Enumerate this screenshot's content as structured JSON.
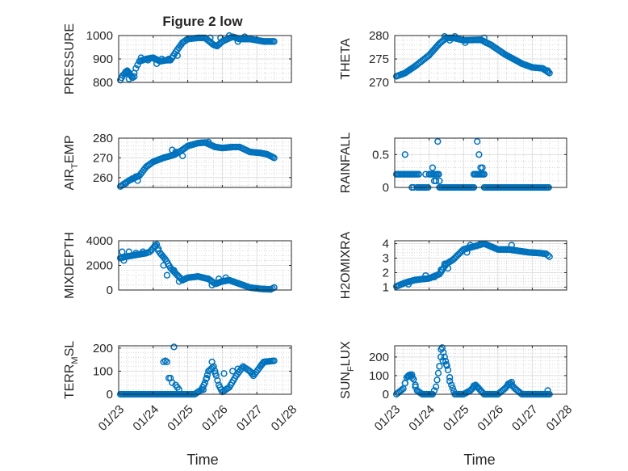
{
  "figure": {
    "title": "Figure 2 low",
    "xlabel": "Time"
  },
  "colors": {
    "marker": "#0072BD",
    "axes": "#262626",
    "grid": "#dfdfdf",
    "minor_grid": "#c8c8c8"
  },
  "chart_data": [
    {
      "type": "scatter",
      "id": "pressure",
      "title": "Figure 2 low",
      "ylabel": "PRESSURE",
      "ylabel_sub": "",
      "xlim": [
        "01/23",
        "01/28"
      ],
      "ylim": [
        800,
        1000
      ],
      "yticks": [
        800,
        900,
        1000
      ],
      "xticks": [
        "01/23",
        "01/24",
        "01/25",
        "01/26",
        "01/27",
        "01/28"
      ],
      "xticklabels_shown": false,
      "marker": "circle",
      "grid": "on (major + minor)",
      "keypoints": [
        [
          0.05,
          810
        ],
        [
          0.12,
          830
        ],
        [
          0.2,
          840
        ],
        [
          0.25,
          850
        ],
        [
          0.3,
          840
        ],
        [
          0.35,
          830
        ],
        [
          0.4,
          820
        ],
        [
          0.5,
          860
        ],
        [
          0.6,
          890
        ],
        [
          0.8,
          900
        ],
        [
          1.0,
          905
        ],
        [
          1.2,
          890
        ],
        [
          1.4,
          895
        ],
        [
          1.5,
          895
        ],
        [
          1.7,
          940
        ],
        [
          1.85,
          970
        ],
        [
          2.0,
          985
        ],
        [
          2.3,
          990
        ],
        [
          2.5,
          990
        ],
        [
          2.75,
          960
        ],
        [
          2.85,
          955
        ],
        [
          3.0,
          975
        ],
        [
          3.3,
          995
        ],
        [
          3.5,
          985
        ],
        [
          3.8,
          985
        ],
        [
          4.2,
          975
        ],
        [
          4.5,
          975
        ]
      ],
      "extra_points": [
        [
          0.2,
          845
        ],
        [
          0.3,
          815
        ],
        [
          0.45,
          825
        ],
        [
          0.65,
          905
        ],
        [
          0.85,
          895
        ],
        [
          1.05,
          900
        ],
        [
          1.1,
          880
        ],
        [
          1.25,
          900
        ],
        [
          1.45,
          900
        ],
        [
          1.55,
          905
        ],
        [
          1.7,
          915
        ],
        [
          2.65,
          990
        ],
        [
          2.95,
          990
        ],
        [
          3.2,
          1000
        ],
        [
          3.45,
          975
        ],
        [
          3.65,
          995
        ]
      ]
    },
    {
      "type": "scatter",
      "id": "theta",
      "ylabel": "THETA",
      "ylabel_sub": "",
      "xlim": [
        "01/23",
        "01/28"
      ],
      "ylim": [
        270,
        280
      ],
      "yticks": [
        270,
        275,
        280
      ],
      "xticks": [
        "01/23",
        "01/24",
        "01/25",
        "01/26",
        "01/27",
        "01/28"
      ],
      "xticklabels_shown": false,
      "marker": "circle",
      "grid": "on (major + minor)",
      "keypoints": [
        [
          0.05,
          271.3
        ],
        [
          0.3,
          272.0
        ],
        [
          0.6,
          273.5
        ],
        [
          1.0,
          275.8
        ],
        [
          1.3,
          278.3
        ],
        [
          1.5,
          279.5
        ],
        [
          1.7,
          279.5
        ],
        [
          2.0,
          279.0
        ],
        [
          2.5,
          279.1
        ],
        [
          2.8,
          278.0
        ],
        [
          3.2,
          276.0
        ],
        [
          3.7,
          274.0
        ],
        [
          4.0,
          273.2
        ],
        [
          4.3,
          273.0
        ],
        [
          4.5,
          272.0
        ]
      ],
      "extra_points": [
        [
          1.45,
          279.8
        ],
        [
          1.6,
          279.0
        ],
        [
          1.75,
          279.8
        ],
        [
          1.85,
          279.3
        ],
        [
          2.05,
          278.5
        ],
        [
          2.6,
          279.5
        ],
        [
          2.65,
          278.5
        ],
        [
          4.45,
          272.5
        ]
      ]
    },
    {
      "type": "scatter",
      "id": "air_temp",
      "ylabel": "AIR",
      "ylabel_sub": "T",
      "ylabel_tail": "EMP",
      "xlim": [
        "01/23",
        "01/28"
      ],
      "ylim": [
        255,
        280
      ],
      "yticks": [
        260,
        270,
        280
      ],
      "xticks": [
        "01/23",
        "01/24",
        "01/25",
        "01/26",
        "01/27",
        "01/28"
      ],
      "xticklabels_shown": false,
      "marker": "circle",
      "grid": "on (major + minor)",
      "keypoints": [
        [
          0.05,
          255.5
        ],
        [
          0.3,
          258.5
        ],
        [
          0.6,
          261.0
        ],
        [
          0.8,
          265.5
        ],
        [
          1.0,
          268.0
        ],
        [
          1.3,
          270.0
        ],
        [
          1.6,
          271.5
        ],
        [
          1.8,
          273.5
        ],
        [
          2.0,
          276.0
        ],
        [
          2.3,
          277.5
        ],
        [
          2.5,
          277.8
        ],
        [
          2.8,
          275.5
        ],
        [
          3.0,
          275.0
        ],
        [
          3.3,
          275.5
        ],
        [
          3.5,
          275.5
        ],
        [
          3.8,
          273.0
        ],
        [
          4.1,
          272.5
        ],
        [
          4.3,
          271.8
        ],
        [
          4.5,
          270.0
        ]
      ],
      "extra_points": [
        [
          0.2,
          257.0
        ],
        [
          0.4,
          259.5
        ],
        [
          0.5,
          260.5
        ],
        [
          0.55,
          258.5
        ],
        [
          1.55,
          274.0
        ],
        [
          1.65,
          273.0
        ],
        [
          1.85,
          271.0
        ],
        [
          2.6,
          278.0
        ]
      ]
    },
    {
      "type": "scatter",
      "id": "rainfall",
      "ylabel": "RAINFALL",
      "ylabel_sub": "",
      "xlim": [
        "01/23",
        "01/28"
      ],
      "ylim": [
        0,
        0.75
      ],
      "yticks": [
        0,
        0.5
      ],
      "xticks": [
        "01/23",
        "01/24",
        "01/25",
        "01/26",
        "01/27",
        "01/28"
      ],
      "xticklabels_shown": false,
      "marker": "circle",
      "grid": "on (major + minor)",
      "series": [
        {
          "name": "",
          "x_range": [
            0.05,
            0.65
          ],
          "value": 0.2
        },
        {
          "name": "",
          "x_range": [
            0.65,
            1.0
          ],
          "value": 0.0
        },
        {
          "name": "",
          "x_range": [
            1.0,
            1.3
          ],
          "value": 0.2
        },
        {
          "name": "",
          "x_range": [
            1.3,
            2.3
          ],
          "value": 0.0
        },
        {
          "name": "",
          "x_range": [
            2.3,
            2.6
          ],
          "value": 0.2
        },
        {
          "name": "",
          "x_range": [
            2.6,
            4.5
          ],
          "value": 0.0
        }
      ],
      "extra_points": [
        [
          0.3,
          0.5
        ],
        [
          0.5,
          0.0
        ],
        [
          0.55,
          0.0
        ],
        [
          0.7,
          0.2
        ],
        [
          0.9,
          0.2
        ],
        [
          1.1,
          0.3
        ],
        [
          1.15,
          0.1
        ],
        [
          1.2,
          0.1
        ],
        [
          1.25,
          0.7
        ],
        [
          1.3,
          0.1
        ],
        [
          2.4,
          0.7
        ],
        [
          2.45,
          0.5
        ],
        [
          2.5,
          0.3
        ],
        [
          2.55,
          0.3
        ],
        [
          2.6,
          0.2
        ]
      ]
    },
    {
      "type": "scatter",
      "id": "mixdepth",
      "ylabel": "MIXDEPTH",
      "ylabel_sub": "",
      "xlim": [
        "01/23",
        "01/28"
      ],
      "ylim": [
        0,
        4000
      ],
      "yticks": [
        0,
        2000,
        4000
      ],
      "xticks": [
        "01/23",
        "01/24",
        "01/25",
        "01/26",
        "01/27",
        "01/28"
      ],
      "xticklabels_shown": false,
      "marker": "circle",
      "grid": "on (major + minor)",
      "keypoints": [
        [
          0.05,
          2600
        ],
        [
          0.2,
          2700
        ],
        [
          0.4,
          2800
        ],
        [
          0.6,
          2900
        ],
        [
          0.8,
          3000
        ],
        [
          0.9,
          3100
        ],
        [
          1.0,
          3400
        ],
        [
          1.1,
          3700
        ],
        [
          1.2,
          3000
        ],
        [
          1.35,
          2500
        ],
        [
          1.5,
          1800
        ],
        [
          1.7,
          1200
        ],
        [
          1.85,
          800
        ],
        [
          2.0,
          1000
        ],
        [
          2.3,
          1100
        ],
        [
          2.6,
          900
        ],
        [
          2.8,
          500
        ],
        [
          3.0,
          700
        ],
        [
          3.2,
          800
        ],
        [
          3.5,
          500
        ],
        [
          3.8,
          200
        ],
        [
          4.1,
          100
        ],
        [
          4.4,
          50
        ],
        [
          4.5,
          200
        ]
      ],
      "extra_points": [
        [
          0.1,
          3100
        ],
        [
          0.15,
          2400
        ],
        [
          0.3,
          3100
        ],
        [
          0.5,
          3000
        ],
        [
          0.7,
          3100
        ],
        [
          1.05,
          3600
        ],
        [
          1.15,
          3200
        ],
        [
          1.3,
          2000
        ],
        [
          1.4,
          1200
        ],
        [
          1.6,
          1600
        ],
        [
          1.75,
          700
        ],
        [
          2.7,
          400
        ],
        [
          2.9,
          900
        ],
        [
          3.1,
          1000
        ]
      ]
    },
    {
      "type": "scatter",
      "id": "h2omixra",
      "ylabel": "H2OMIXRA",
      "ylabel_sub": "",
      "xlim": [
        "01/23",
        "01/28"
      ],
      "ylim": [
        0.8,
        4.2
      ],
      "yticks": [
        1,
        2,
        3,
        4
      ],
      "xticks": [
        "01/23",
        "01/24",
        "01/25",
        "01/26",
        "01/27",
        "01/28"
      ],
      "xticklabels_shown": false,
      "marker": "circle",
      "grid": "on (major + minor)",
      "keypoints": [
        [
          0.05,
          1.05
        ],
        [
          0.3,
          1.3
        ],
        [
          0.6,
          1.5
        ],
        [
          1.0,
          1.6
        ],
        [
          1.3,
          1.9
        ],
        [
          1.5,
          2.6
        ],
        [
          1.7,
          2.9
        ],
        [
          2.0,
          3.6
        ],
        [
          2.3,
          3.8
        ],
        [
          2.6,
          4.0
        ],
        [
          2.8,
          3.8
        ],
        [
          3.0,
          3.6
        ],
        [
          3.3,
          3.6
        ],
        [
          3.6,
          3.5
        ],
        [
          3.9,
          3.4
        ],
        [
          4.2,
          3.35
        ],
        [
          4.4,
          3.3
        ],
        [
          4.5,
          3.1
        ]
      ],
      "extra_points": [
        [
          0.4,
          1.2
        ],
        [
          0.9,
          1.8
        ],
        [
          1.15,
          1.7
        ],
        [
          1.35,
          2.2
        ],
        [
          1.45,
          2.6
        ],
        [
          1.55,
          2.3
        ],
        [
          2.1,
          3.4
        ],
        [
          2.2,
          3.9
        ],
        [
          2.5,
          4.0
        ],
        [
          2.9,
          3.7
        ],
        [
          3.4,
          3.9
        ]
      ]
    },
    {
      "type": "scatter",
      "id": "terr_msl",
      "ylabel": "TERR",
      "ylabel_sub": "M",
      "ylabel_tail": "SL",
      "xlim": [
        "01/23",
        "01/28"
      ],
      "ylim": [
        0,
        210
      ],
      "yticks": [
        0,
        100,
        200
      ],
      "xticks": [
        "01/23",
        "01/24",
        "01/25",
        "01/26",
        "01/27",
        "01/28"
      ],
      "xticklabels_shown": true,
      "marker": "circle",
      "grid": "on (major + minor)",
      "keypoints": [
        [
          0.05,
          0
        ],
        [
          1.0,
          0
        ],
        [
          1.5,
          0
        ],
        [
          1.8,
          0
        ],
        [
          2.2,
          0
        ],
        [
          2.4,
          20
        ],
        [
          2.5,
          50
        ],
        [
          2.6,
          100
        ],
        [
          2.75,
          120
        ],
        [
          2.9,
          40
        ],
        [
          3.0,
          10
        ],
        [
          3.2,
          30
        ],
        [
          3.4,
          80
        ],
        [
          3.6,
          120
        ],
        [
          3.8,
          100
        ],
        [
          3.9,
          80
        ],
        [
          4.1,
          120
        ],
        [
          4.2,
          140
        ],
        [
          4.5,
          145
        ]
      ],
      "extra_points": [
        [
          1.3,
          140
        ],
        [
          1.35,
          145
        ],
        [
          1.4,
          140
        ],
        [
          1.45,
          70
        ],
        [
          1.5,
          70
        ],
        [
          1.55,
          50
        ],
        [
          1.6,
          205
        ],
        [
          1.65,
          40
        ],
        [
          1.7,
          30
        ],
        [
          1.75,
          20
        ],
        [
          2.3,
          10
        ],
        [
          2.45,
          20
        ],
        [
          2.55,
          70
        ],
        [
          2.7,
          140
        ],
        [
          2.8,
          90
        ],
        [
          3.05,
          90
        ],
        [
          3.3,
          100
        ],
        [
          3.45,
          110
        ]
      ]
    },
    {
      "type": "scatter",
      "id": "sun_flux",
      "ylabel": "SUN",
      "ylabel_sub": "F",
      "ylabel_tail": "LUX",
      "xlim": [
        "01/23",
        "01/28"
      ],
      "ylim": [
        0,
        260
      ],
      "yticks": [
        0,
        100,
        200
      ],
      "xticks": [
        "01/23",
        "01/24",
        "01/25",
        "01/26",
        "01/27",
        "01/28"
      ],
      "xticklabels_shown": true,
      "marker": "circle",
      "grid": "on (major + minor)",
      "keypoints": [
        [
          0.05,
          0
        ],
        [
          0.25,
          30
        ],
        [
          0.35,
          90
        ],
        [
          0.45,
          105
        ],
        [
          0.55,
          80
        ],
        [
          0.65,
          20
        ],
        [
          0.8,
          0
        ],
        [
          1.1,
          0
        ],
        [
          1.2,
          40
        ],
        [
          1.3,
          150
        ],
        [
          1.38,
          250
        ],
        [
          1.45,
          200
        ],
        [
          1.55,
          130
        ],
        [
          1.65,
          50
        ],
        [
          1.75,
          0
        ],
        [
          2.0,
          0
        ],
        [
          2.2,
          20
        ],
        [
          2.35,
          50
        ],
        [
          2.5,
          20
        ],
        [
          2.6,
          0
        ],
        [
          3.0,
          0
        ],
        [
          3.2,
          30
        ],
        [
          3.35,
          60
        ],
        [
          3.5,
          30
        ],
        [
          3.7,
          0
        ],
        [
          4.5,
          0
        ]
      ],
      "extra_points": [
        [
          0.3,
          60
        ],
        [
          0.4,
          100
        ],
        [
          0.5,
          105
        ],
        [
          0.6,
          40
        ],
        [
          1.35,
          240
        ],
        [
          1.4,
          180
        ],
        [
          1.5,
          160
        ],
        [
          1.6,
          70
        ],
        [
          2.3,
          45
        ],
        [
          2.4,
          40
        ],
        [
          3.3,
          55
        ],
        [
          3.4,
          65
        ],
        [
          4.45,
          20
        ]
      ]
    }
  ]
}
